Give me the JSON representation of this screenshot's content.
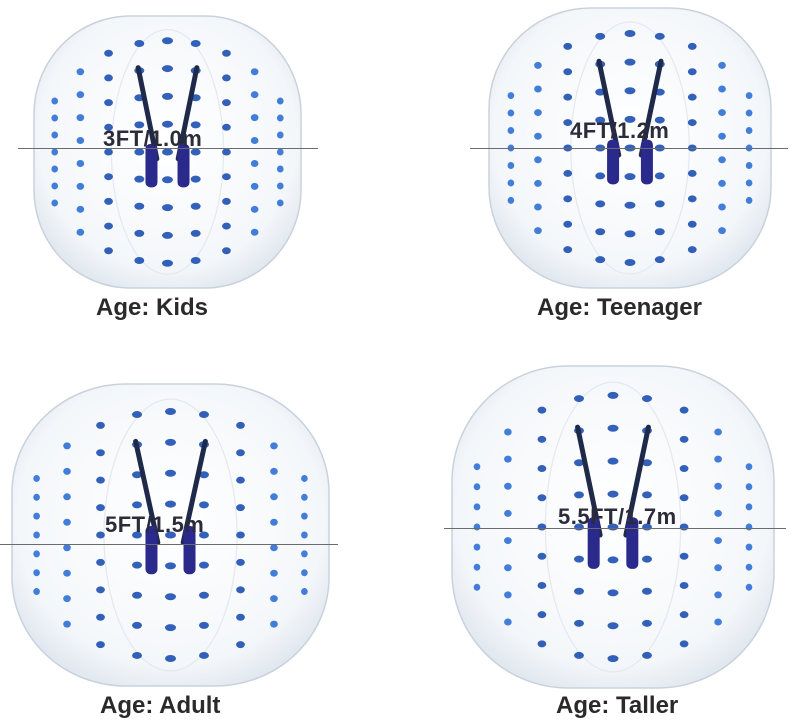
{
  "colors": {
    "dot": "#2f6fd6",
    "dot_dark": "#1d4fb0",
    "handle": "#2a2a8c",
    "strap": "#1f2a4a",
    "ball_edge": "#c9d2dc",
    "measure_line": "#6b6b6b"
  },
  "panels": [
    {
      "id": "kids",
      "size": "3FT/1.0m",
      "caption": "Age: Kids"
    },
    {
      "id": "teenager",
      "size": "4FT/1.2m",
      "caption": "Age: Teenager"
    },
    {
      "id": "adult",
      "size": "5FT/1.5m",
      "caption": "Age: Adult"
    },
    {
      "id": "taller",
      "size": "5.5FT/1.7m",
      "caption": "Age: Taller"
    }
  ]
}
